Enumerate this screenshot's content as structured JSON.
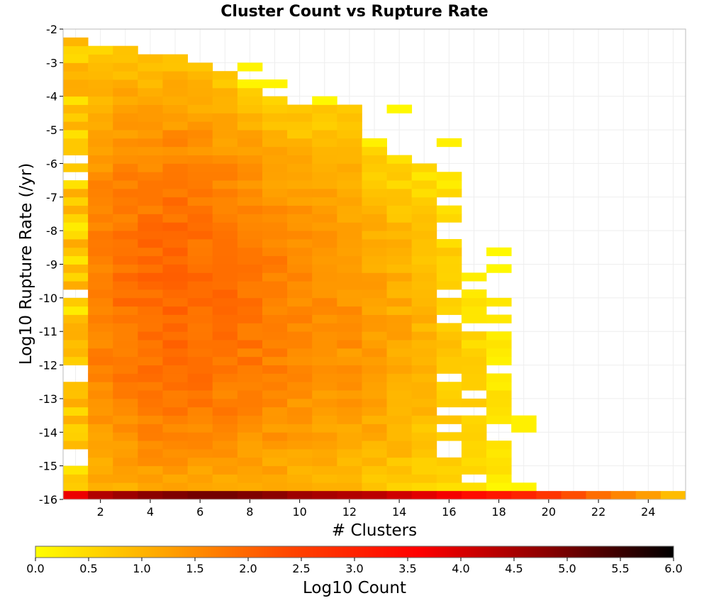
{
  "chart_data": {
    "type": "heatmap",
    "title": "Cluster Count vs Rupture Rate",
    "xlabel": "# Clusters",
    "ylabel": "Log10 Rupture Rate (/yr)",
    "xlim": [
      0.5,
      25.5
    ],
    "ylim": [
      -16,
      -2
    ],
    "x_ticks": [
      2,
      4,
      6,
      8,
      10,
      12,
      14,
      16,
      18,
      20,
      22,
      24
    ],
    "y_ticks": [
      -2,
      -3,
      -4,
      -5,
      -6,
      -7,
      -8,
      -9,
      -10,
      -11,
      -12,
      -13,
      -14,
      -15,
      -16
    ],
    "bin_height": 0.25,
    "grid": true,
    "colorbar": {
      "label": "Log10 Count",
      "range": [
        0,
        6
      ],
      "ticks": [
        "0.0",
        "0.5",
        "1.0",
        "1.5",
        "2.0",
        "2.5",
        "3.0",
        "3.5",
        "4.0",
        "4.5",
        "5.0",
        "5.5",
        "6.0"
      ],
      "colors": [
        "#ffff00",
        "#ffa500",
        "#ff4500",
        "#ff0000",
        "#8b0000",
        "#000000"
      ]
    },
    "cluster_ranges": [
      {
        "x": 1,
        "ymin": -15.75,
        "ymax": -2.5,
        "peak": 1.1
      },
      {
        "x": 2,
        "ymin": -15.75,
        "ymax": -2.75,
        "peak": 1.7
      },
      {
        "x": 3,
        "ymin": -15.75,
        "ymax": -2.75,
        "peak": 1.85
      },
      {
        "x": 4,
        "ymin": -15.75,
        "ymax": -3.0,
        "peak": 1.95
      },
      {
        "x": 5,
        "ymin": -15.75,
        "ymax": -3.0,
        "peak": 2.0
      },
      {
        "x": 6,
        "ymin": -15.75,
        "ymax": -3.25,
        "peak": 1.95
      },
      {
        "x": 7,
        "ymin": -15.75,
        "ymax": -3.5,
        "peak": 1.9
      },
      {
        "x": 8,
        "ymin": -15.75,
        "ymax": -3.75,
        "peak": 1.8
      },
      {
        "x": 9,
        "ymin": -15.75,
        "ymax": -4.25,
        "peak": 1.7
      },
      {
        "x": 10,
        "ymin": -15.75,
        "ymax": -4.5,
        "peak": 1.6
      },
      {
        "x": 11,
        "ymin": -15.75,
        "ymax": -4.5,
        "peak": 1.55
      },
      {
        "x": 12,
        "ymin": -15.75,
        "ymax": -4.5,
        "peak": 1.45
      },
      {
        "x": 13,
        "ymin": -15.75,
        "ymax": -5.75,
        "peak": 1.3
      },
      {
        "x": 14,
        "ymin": -15.75,
        "ymax": -6.0,
        "peak": 1.15
      },
      {
        "x": 15,
        "ymin": -15.75,
        "ymax": -6.25,
        "peak": 1.0
      },
      {
        "x": 16,
        "ymin": -15.75,
        "ymax": -6.25,
        "peak": 0.75
      },
      {
        "x": 17,
        "ymin": -15.75,
        "ymax": -9.5,
        "peak": 0.6
      },
      {
        "x": 18,
        "ymin": -15.75,
        "ymax": -10.25,
        "peak": 0.4
      }
    ],
    "sparse_cells": [
      {
        "x": 1,
        "y": -3.0,
        "value": 0.5
      },
      {
        "x": 8,
        "y": -3.25,
        "value": 0.15
      },
      {
        "x": 8,
        "y": -3.75,
        "value": 0.15
      },
      {
        "x": 9,
        "y": -3.75,
        "value": 0.15
      },
      {
        "x": 11,
        "y": -4.25,
        "value": 0.1
      },
      {
        "x": 14,
        "y": -4.5,
        "value": 0.1
      },
      {
        "x": 13,
        "y": -5.5,
        "value": 0.2
      },
      {
        "x": 16,
        "y": -5.5,
        "value": 0.2
      },
      {
        "x": 18,
        "y": -8.75,
        "value": 0.1
      },
      {
        "x": 18,
        "y": -9.25,
        "value": 0.1
      },
      {
        "x": 19,
        "y": -13.75,
        "value": 0.2
      },
      {
        "x": 19,
        "y": -14.0,
        "value": 0.2
      },
      {
        "x": 19,
        "y": -15.75,
        "value": 0.15
      }
    ],
    "bottom_row": {
      "y": -16.0,
      "values": [
        3.8,
        4.4,
        4.6,
        4.8,
        4.9,
        5.0,
        5.0,
        4.9,
        4.8,
        4.6,
        4.5,
        4.4,
        4.3,
        4.1,
        3.9,
        3.7,
        3.4,
        3.2,
        3.0,
        2.7,
        2.3,
        1.9,
        1.6,
        1.3,
        0.9
      ]
    }
  }
}
